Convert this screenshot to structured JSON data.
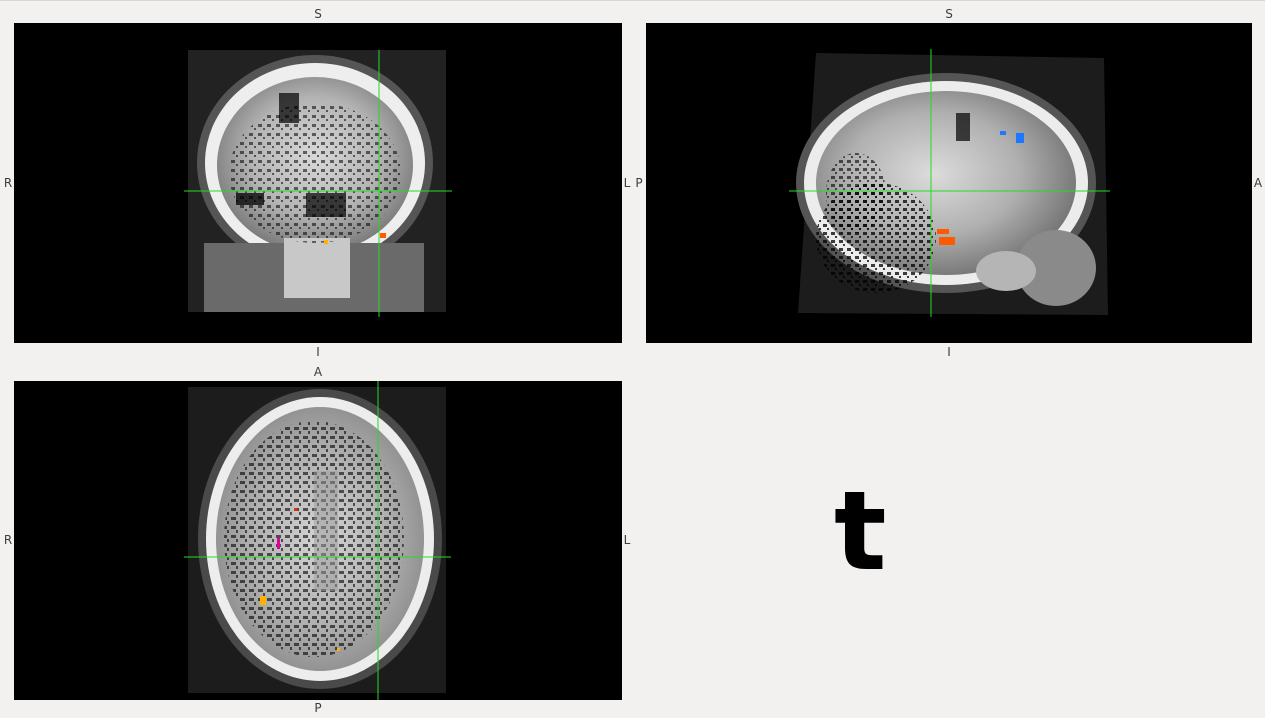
{
  "views": {
    "coronal": {
      "top": "S",
      "bottom": "I",
      "left": "R",
      "right": "L"
    },
    "sagittal": {
      "top": "S",
      "bottom": "I",
      "left": "P",
      "right": "A"
    },
    "axial": {
      "top": "A",
      "bottom": "P",
      "left": "R",
      "right": "L"
    }
  },
  "overlay_label": "t",
  "colors": {
    "background": "#f2f1f0",
    "canvas": "#000000",
    "cursor": "#22dd22",
    "blob_orange": "#ff5a00",
    "blob_yellow": "#ffb300",
    "blob_blue": "#1e78ff",
    "blob_magenta": "#e000a0",
    "blob_red": "#ff2200"
  }
}
